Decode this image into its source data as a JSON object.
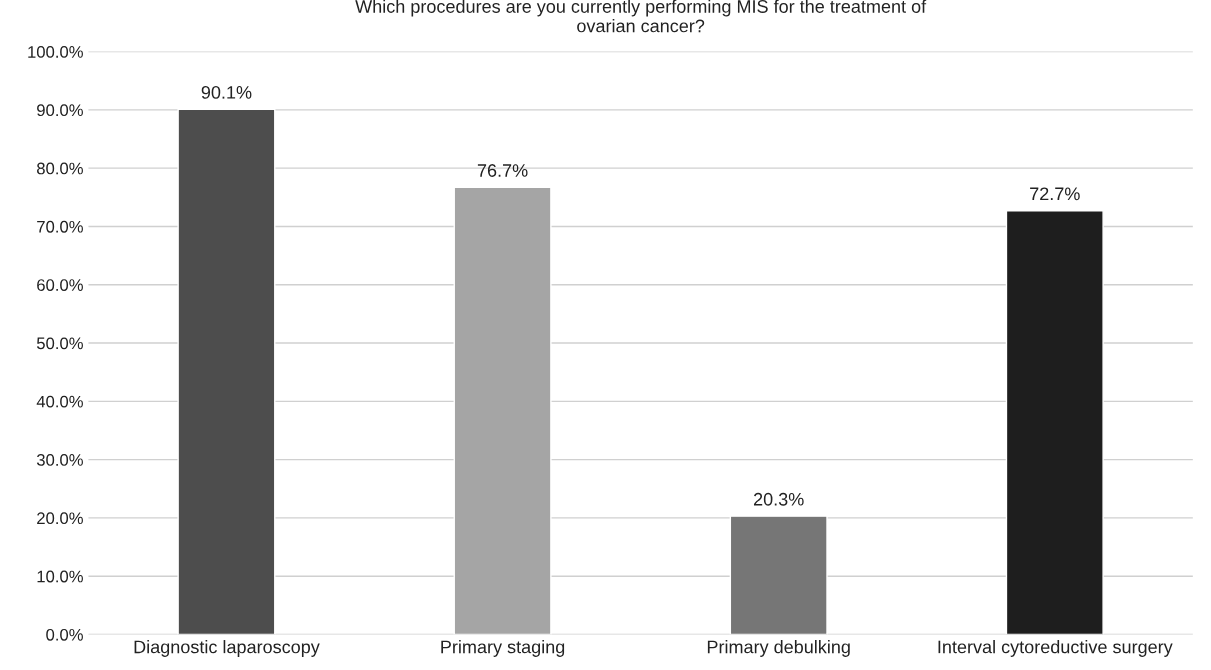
{
  "chart_data": {
    "type": "bar",
    "title": "Which procedures are you currently performing MIS for the treatment of\novarian cancer?",
    "categories": [
      "Diagnostic laparoscopy",
      "Primary staging",
      "Primary debulking",
      "Interval cytoreductive surgery"
    ],
    "values": [
      90.1,
      76.7,
      20.3,
      72.7
    ],
    "colors": [
      "#4d4d4d",
      "#a5a5a5",
      "#767676",
      "#1e1e1e"
    ],
    "value_labels": [
      "90.1%",
      "76.7%",
      "20.3%",
      "72.7%"
    ],
    "ylim": [
      0,
      100
    ],
    "yticks": [
      {
        "value": 0,
        "label": "0.0%"
      },
      {
        "value": 10,
        "label": "10.0%"
      },
      {
        "value": 20,
        "label": "20.0%"
      },
      {
        "value": 30,
        "label": "30.0%"
      },
      {
        "value": 40,
        "label": "40.0%"
      },
      {
        "value": 50,
        "label": "50.0%"
      },
      {
        "value": 60,
        "label": "60.0%"
      },
      {
        "value": 70,
        "label": "70.0%"
      },
      {
        "value": 80,
        "label": "80.0%"
      },
      {
        "value": 90,
        "label": "90.0%"
      },
      {
        "value": 100,
        "label": "100.0%"
      }
    ],
    "grid": "y"
  }
}
